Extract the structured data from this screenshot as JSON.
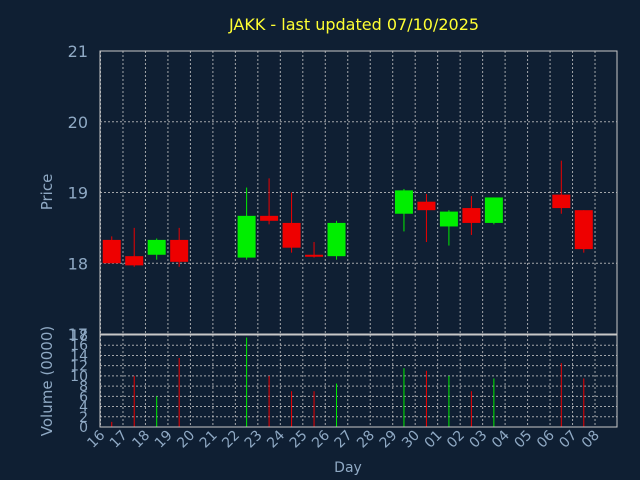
{
  "title": "JAKK - last updated 07/10/2025",
  "colors": {
    "background": "#0f1f33",
    "title": "#ffff33",
    "axis_text": "#8fa9c4",
    "grid": "#c8c8c8",
    "frame": "#c8c8c8",
    "up": "#00ee00",
    "down": "#ee0000"
  },
  "chart_data": [
    {
      "type": "candlestick",
      "ylabel": "Price",
      "ylim": [
        17,
        21
      ],
      "y_ticks": [
        "17",
        "18",
        "19",
        "20",
        "21"
      ],
      "grid": true,
      "candles": [
        {
          "day": "16",
          "open": 18.33,
          "high": 18.38,
          "low": 18.0,
          "close": 18.0
        },
        {
          "day": "17",
          "open": 18.1,
          "high": 18.5,
          "low": 17.95,
          "close": 17.97
        },
        {
          "day": "18",
          "open": 18.12,
          "high": 18.35,
          "low": 18.05,
          "close": 18.33
        },
        {
          "day": "19",
          "open": 18.33,
          "high": 18.5,
          "low": 17.95,
          "close": 18.02
        },
        {
          "day": "22",
          "open": 18.08,
          "high": 19.07,
          "low": 18.05,
          "close": 18.67
        },
        {
          "day": "23",
          "open": 18.67,
          "high": 19.2,
          "low": 18.55,
          "close": 18.6
        },
        {
          "day": "24",
          "open": 18.57,
          "high": 19.0,
          "low": 18.15,
          "close": 18.22
        },
        {
          "day": "25",
          "open": 18.12,
          "high": 18.3,
          "low": 18.08,
          "close": 18.1
        },
        {
          "day": "26",
          "open": 18.1,
          "high": 18.6,
          "low": 18.05,
          "close": 18.57
        },
        {
          "day": "29",
          "open": 18.7,
          "high": 19.05,
          "low": 18.45,
          "close": 19.03
        },
        {
          "day": "30",
          "open": 18.87,
          "high": 18.98,
          "low": 18.3,
          "close": 18.75
        },
        {
          "day": "01",
          "open": 18.52,
          "high": 18.75,
          "low": 18.25,
          "close": 18.73
        },
        {
          "day": "02",
          "open": 18.78,
          "high": 18.95,
          "low": 18.4,
          "close": 18.57
        },
        {
          "day": "03",
          "open": 18.57,
          "high": 18.93,
          "low": 18.55,
          "close": 18.93
        },
        {
          "day": "06",
          "open": 18.97,
          "high": 19.45,
          "low": 18.7,
          "close": 18.78
        },
        {
          "day": "07",
          "open": 18.75,
          "high": 18.75,
          "low": 18.15,
          "close": 18.2
        }
      ]
    },
    {
      "type": "bar",
      "ylabel": "Volume (0000)",
      "ylim": [
        0,
        18
      ],
      "y_ticks": [
        "0",
        "2",
        "4",
        "6",
        "8",
        "10",
        "12",
        "14",
        "16",
        "18"
      ],
      "grid": true,
      "bars": [
        {
          "day": "16",
          "value": 1,
          "direction": "down"
        },
        {
          "day": "17",
          "value": 10,
          "direction": "down"
        },
        {
          "day": "18",
          "value": 6,
          "direction": "up"
        },
        {
          "day": "19",
          "value": 13.5,
          "direction": "down"
        },
        {
          "day": "22",
          "value": 17.5,
          "direction": "up"
        },
        {
          "day": "23",
          "value": 10,
          "direction": "down"
        },
        {
          "day": "24",
          "value": 7,
          "direction": "down"
        },
        {
          "day": "25",
          "value": 7,
          "direction": "down"
        },
        {
          "day": "26",
          "value": 8.5,
          "direction": "up"
        },
        {
          "day": "29",
          "value": 11.5,
          "direction": "up"
        },
        {
          "day": "30",
          "value": 11,
          "direction": "down"
        },
        {
          "day": "01",
          "value": 10,
          "direction": "up"
        },
        {
          "day": "02",
          "value": 7,
          "direction": "down"
        },
        {
          "day": "03",
          "value": 9.5,
          "direction": "up"
        },
        {
          "day": "06",
          "value": 12.5,
          "direction": "down"
        },
        {
          "day": "07",
          "value": 9.5,
          "direction": "down"
        }
      ]
    }
  ],
  "x_axis": {
    "label": "Day",
    "ticks": [
      "16",
      "17",
      "18",
      "19",
      "20",
      "21",
      "22",
      "23",
      "24",
      "25",
      "26",
      "27",
      "28",
      "29",
      "30",
      "01",
      "02",
      "03",
      "04",
      "05",
      "06",
      "07",
      "08"
    ]
  }
}
